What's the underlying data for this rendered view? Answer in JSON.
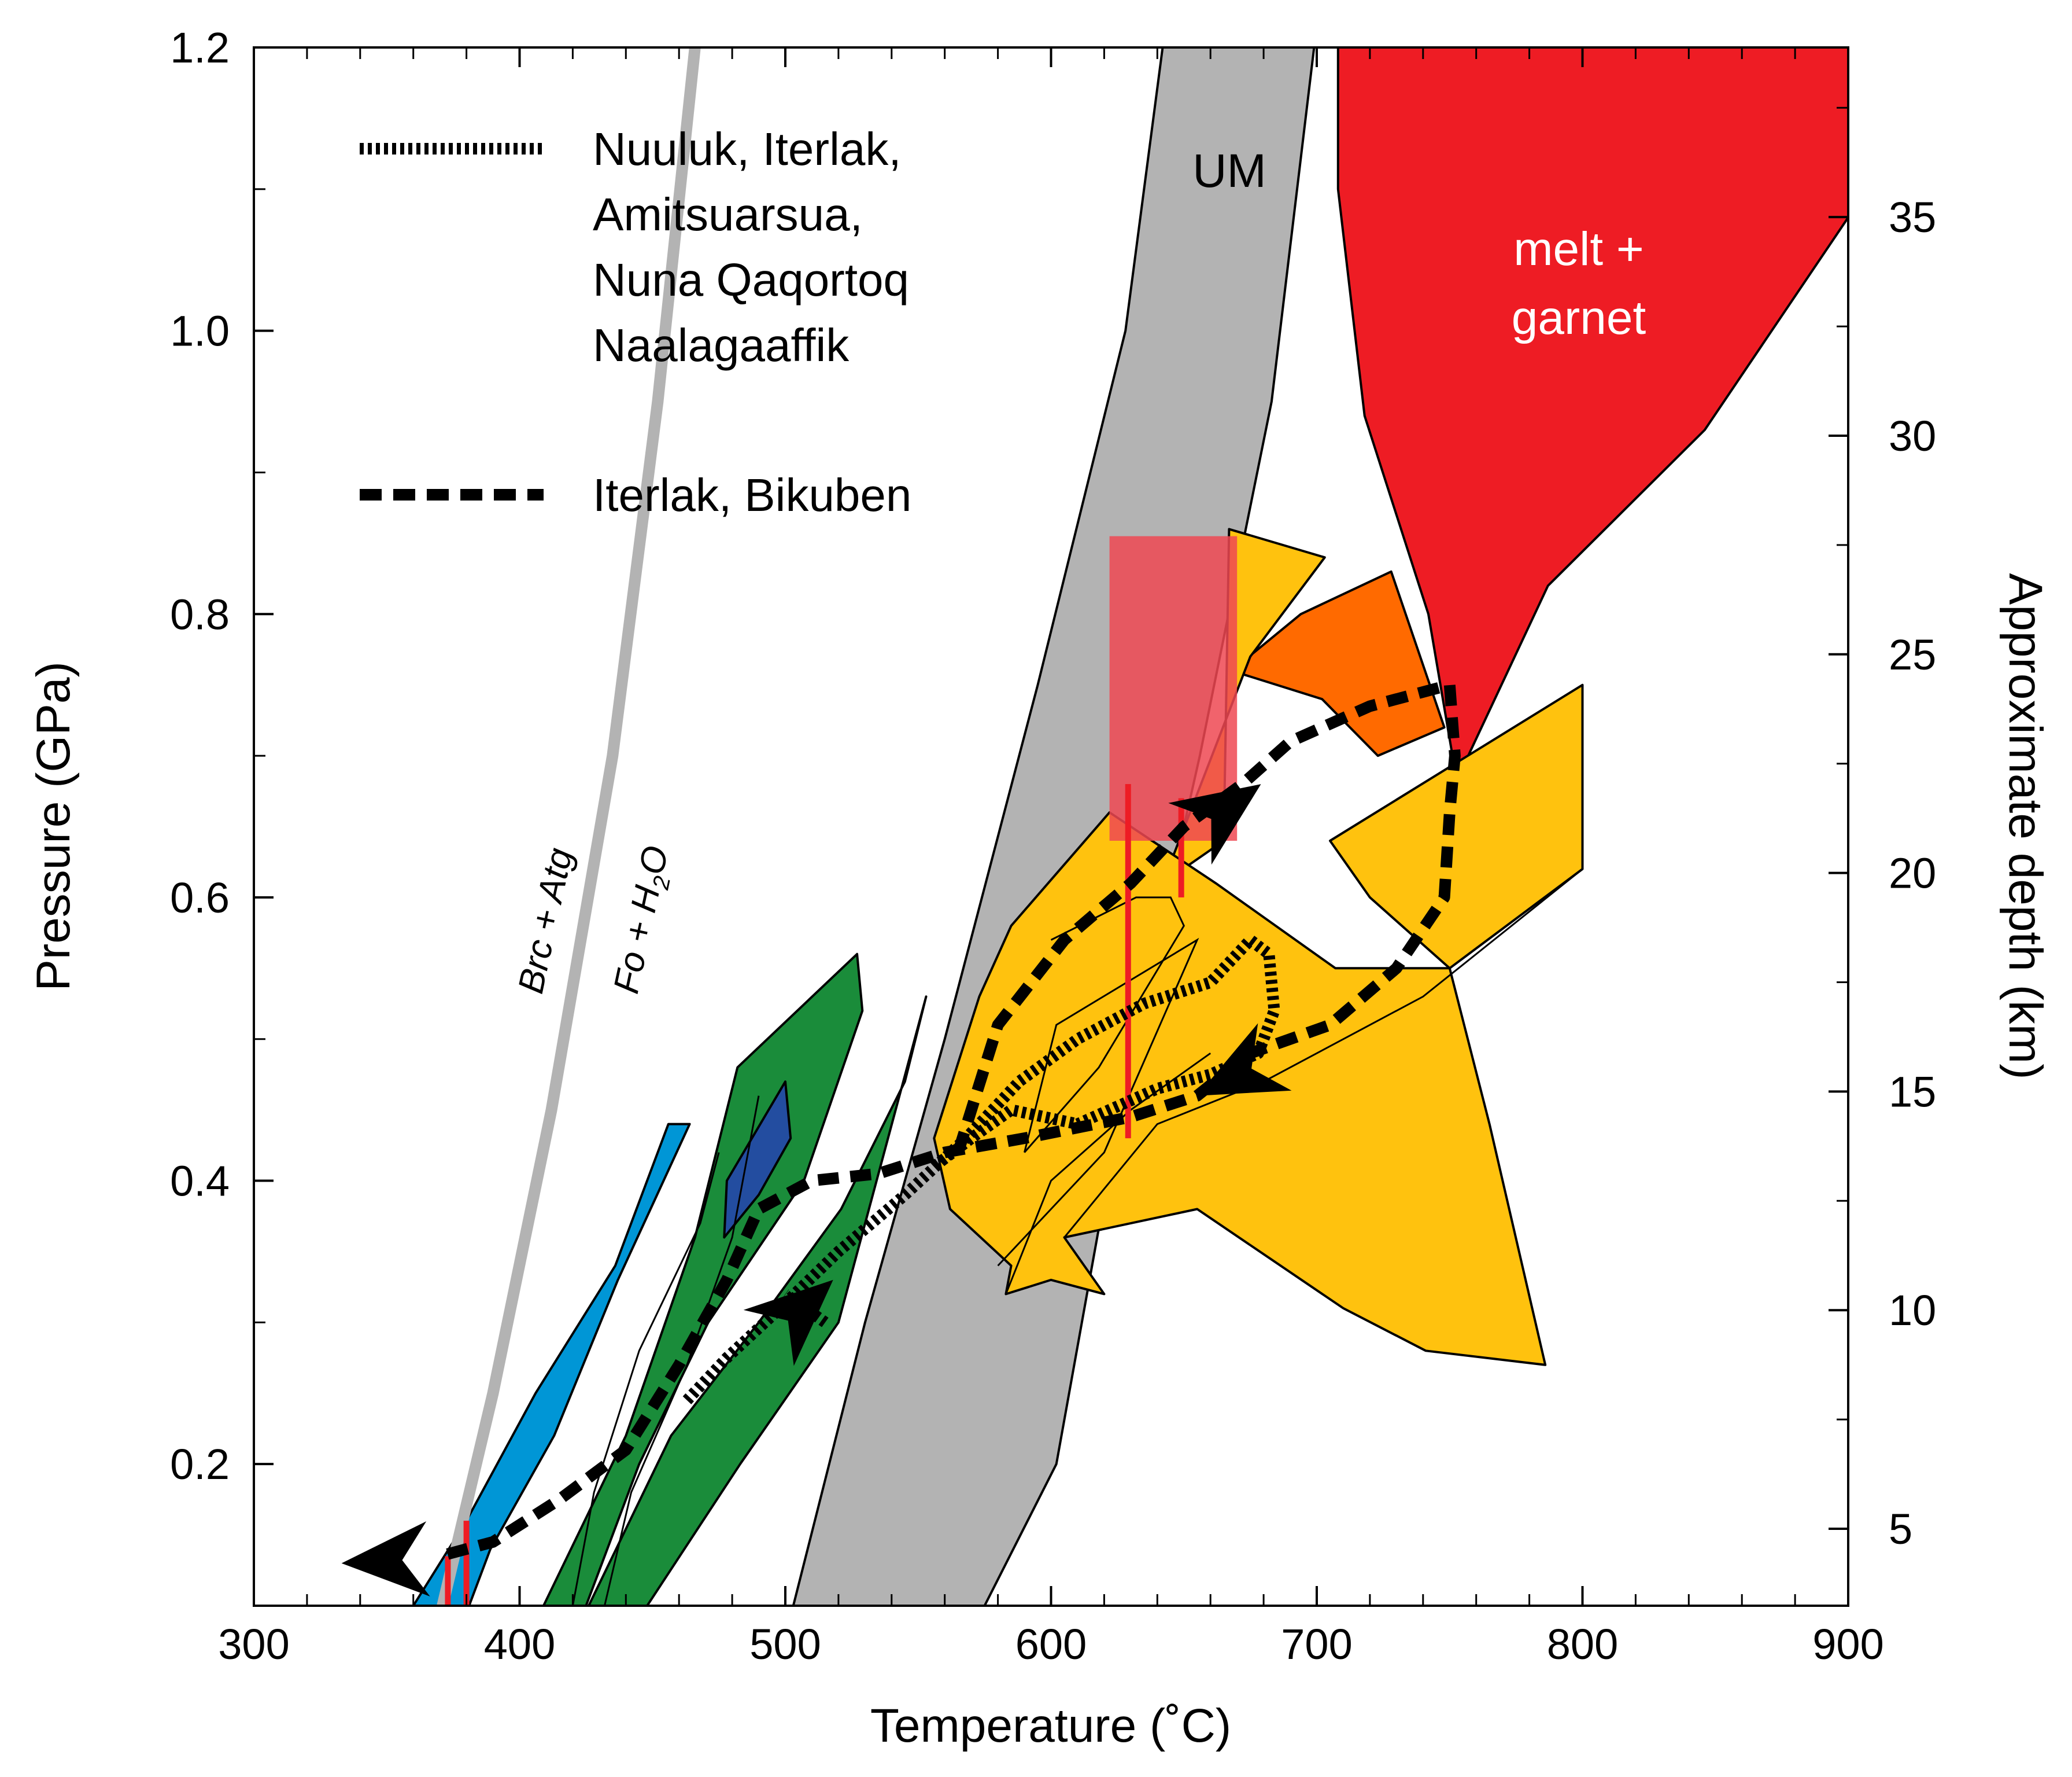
{
  "chart_data": {
    "type": "diagram",
    "title": "",
    "xlabel": "Temperature (˚C)",
    "ylabel": "Pressure (GPa)",
    "y2label": "Approximate depth (km)",
    "xlim": [
      300,
      900
    ],
    "ylim": [
      0.1,
      1.2
    ],
    "x_ticks": [
      300,
      400,
      500,
      600,
      700,
      800,
      900
    ],
    "x_tick_labels": [
      "300",
      "400",
      "500",
      "600",
      "700",
      "800",
      "900"
    ],
    "x_minor_step": 20,
    "y_ticks": [
      0.2,
      0.4,
      0.6,
      0.8,
      1.0,
      1.2
    ],
    "y_tick_labels": [
      "0.2",
      "0.4",
      "0.6",
      "0.8",
      "1.0",
      "1.2"
    ],
    "y_minor_step": 0.1,
    "depth_major_ticks": [
      5,
      10,
      15,
      20,
      25,
      30,
      35
    ],
    "depth_major_labels": [
      "5",
      "10",
      "15",
      "20",
      "25",
      "30",
      "35"
    ],
    "depth_minor_ticks": [
      7.5,
      12.5,
      17.5,
      22.5,
      27.5,
      32.5,
      37.5
    ],
    "depth_km_per_gpa": 32.4,
    "legend": [
      {
        "label_lines": [
          "Nuuluk, Iterlak,",
          "Amitsuarsua,",
          "Nuna Qaqortoq",
          "Naalagaaffik"
        ],
        "style": "dotted"
      },
      {
        "label_lines": [
          "Iterlak, Bikuben"
        ],
        "style": "dashed"
      }
    ],
    "reaction_curve": {
      "name": "brc-atg-reaction",
      "label_left": "Brc + Atg",
      "label_right_main": "Fo + H",
      "label_right_sub": "2",
      "label_right_end": "O",
      "color": "#b3b3b3",
      "points": [
        [
          371,
          0.1
        ],
        [
          390,
          0.25
        ],
        [
          412,
          0.45
        ],
        [
          435,
          0.7
        ],
        [
          452,
          0.95
        ],
        [
          466,
          1.2
        ]
      ]
    },
    "regions": [
      {
        "name": "um-band",
        "label": "UM",
        "fill": "#b3b3b3",
        "points": [
          [
            503,
            0.1
          ],
          [
            530,
            0.3
          ],
          [
            560,
            0.5
          ],
          [
            595,
            0.75
          ],
          [
            628,
            1.0
          ],
          [
            642,
            1.2
          ],
          [
            699,
            1.2
          ],
          [
            683,
            0.95
          ],
          [
            656,
            0.7
          ],
          [
            626,
            0.45
          ],
          [
            602,
            0.2
          ],
          [
            575,
            0.1
          ]
        ]
      },
      {
        "name": "melt-garnet-field",
        "label_lines": [
          "melt +",
          "garnet"
        ],
        "fill": "#ee1c24",
        "points": [
          [
            708,
            1.2
          ],
          [
            900,
            1.2
          ],
          [
            900,
            1.08
          ],
          [
            846,
            0.93
          ],
          [
            787,
            0.82
          ],
          [
            757,
            0.7
          ],
          [
            752,
            0.69
          ],
          [
            742,
            0.8
          ],
          [
            718,
            0.94
          ],
          [
            708,
            1.1
          ]
        ]
      },
      {
        "name": "orange-field",
        "fill": "#ff6a00",
        "points": [
          [
            668,
            0.76
          ],
          [
            694,
            0.8
          ],
          [
            728,
            0.83
          ],
          [
            748,
            0.72
          ],
          [
            723,
            0.7
          ],
          [
            702,
            0.74
          ]
        ]
      },
      {
        "name": "yellow-field-upper",
        "fill": "#ffc20e",
        "points": [
          [
            667,
            0.86
          ],
          [
            703,
            0.84
          ],
          [
            675,
            0.77
          ],
          [
            642,
            0.61
          ],
          [
            665,
            0.64
          ]
        ]
      },
      {
        "name": "yellow-field-right",
        "fill": "#ffc20e",
        "points": [
          [
            705,
            0.64
          ],
          [
            800,
            0.75
          ],
          [
            800,
            0.62
          ],
          [
            750,
            0.55
          ],
          [
            720,
            0.6
          ]
        ]
      },
      {
        "name": "yellow-field-main",
        "fill": "#ffc20e",
        "points": [
          [
            585,
            0.58
          ],
          [
            622,
            0.66
          ],
          [
            662,
            0.61
          ],
          [
            707,
            0.55
          ],
          [
            750,
            0.55
          ],
          [
            765,
            0.44
          ],
          [
            786,
            0.27
          ],
          [
            741,
            0.28
          ],
          [
            710,
            0.31
          ],
          [
            655,
            0.38
          ],
          [
            605,
            0.36
          ],
          [
            620,
            0.32
          ],
          [
            600,
            0.33
          ],
          [
            583,
            0.32
          ],
          [
            585,
            0.34
          ],
          [
            562,
            0.38
          ],
          [
            556,
            0.43
          ],
          [
            573,
            0.53
          ]
        ]
      },
      {
        "name": "green-field-1",
        "fill": "#1a8c3a",
        "points": [
          [
            482,
            0.48
          ],
          [
            527,
            0.56
          ],
          [
            529,
            0.52
          ],
          [
            507,
            0.4
          ],
          [
            471,
            0.3
          ],
          [
            445,
            0.2
          ],
          [
            425,
            0.1
          ],
          [
            409,
            0.1
          ],
          [
            440,
            0.22
          ],
          [
            466,
            0.36
          ]
        ]
      },
      {
        "name": "green-field-2",
        "fill": "#1a8c3a",
        "points": [
          [
            553,
            0.53
          ],
          [
            545,
            0.47
          ],
          [
            521,
            0.38
          ],
          [
            490,
            0.3
          ],
          [
            457,
            0.22
          ],
          [
            426,
            0.1
          ],
          [
            448,
            0.1
          ],
          [
            483,
            0.2
          ],
          [
            520,
            0.3
          ]
        ]
      },
      {
        "name": "blue-field-light",
        "fill": "#0096d6",
        "points": [
          [
            456,
            0.44
          ],
          [
            464,
            0.44
          ],
          [
            437,
            0.33
          ],
          [
            413,
            0.22
          ],
          [
            389,
            0.14
          ],
          [
            381,
            0.1
          ],
          [
            360,
            0.1
          ],
          [
            380,
            0.16
          ],
          [
            406,
            0.25
          ],
          [
            436,
            0.34
          ]
        ]
      },
      {
        "name": "blue-field-dark",
        "fill": "#234da0",
        "points": [
          [
            478,
            0.4
          ],
          [
            500,
            0.47
          ],
          [
            502,
            0.43
          ],
          [
            490,
            0.39
          ],
          [
            477,
            0.36
          ]
        ]
      },
      {
        "name": "pink-box",
        "fill": "rgba(239,72,82,0.85)",
        "stroke": "none",
        "points": [
          [
            622,
            0.855
          ],
          [
            670,
            0.855
          ],
          [
            670,
            0.64
          ],
          [
            622,
            0.64
          ]
        ]
      }
    ],
    "fine_lines": [
      {
        "name": "green-inner-line-1",
        "points": [
          [
            475,
            0.42
          ],
          [
            468,
            0.37
          ],
          [
            445,
            0.28
          ],
          [
            428,
            0.18
          ],
          [
            420,
            0.1
          ]
        ]
      },
      {
        "name": "green-inner-line-2",
        "points": [
          [
            490,
            0.46
          ],
          [
            480,
            0.36
          ],
          [
            463,
            0.27
          ],
          [
            442,
            0.18
          ],
          [
            432,
            0.1
          ]
        ]
      },
      {
        "name": "yellow-inner-line-1",
        "points": [
          [
            580,
            0.34
          ],
          [
            620,
            0.42
          ],
          [
            655,
            0.57
          ],
          [
            602,
            0.51
          ],
          [
            590,
            0.42
          ]
        ]
      },
      {
        "name": "yellow-inner-line-2",
        "points": [
          [
            600,
            0.57
          ],
          [
            632,
            0.6
          ],
          [
            645,
            0.6
          ],
          [
            650,
            0.58
          ],
          [
            618,
            0.48
          ],
          [
            590,
            0.42
          ]
        ]
      },
      {
        "name": "yellow-inner-line-3",
        "points": [
          [
            605,
            0.36
          ],
          [
            640,
            0.44
          ],
          [
            680,
            0.47
          ],
          [
            740,
            0.53
          ],
          [
            800,
            0.62
          ]
        ]
      },
      {
        "name": "yellow-inner-line-4",
        "points": [
          [
            660,
            0.49
          ],
          [
            630,
            0.45
          ],
          [
            600,
            0.4
          ],
          [
            583,
            0.32
          ]
        ]
      }
    ],
    "red_bars": [
      {
        "name": "red-bar-1",
        "x": 373,
        "y_low": 0.1,
        "y_high": 0.135
      },
      {
        "name": "red-bar-2",
        "x": 380,
        "y_low": 0.1,
        "y_high": 0.16
      },
      {
        "name": "red-bar-3",
        "x": 629,
        "y_low": 0.43,
        "y_high": 0.68
      },
      {
        "name": "red-bar-4",
        "x": 649,
        "y_low": 0.6,
        "y_high": 0.67
      }
    ],
    "paths": [
      {
        "name": "dotted-path",
        "style": "dotted",
        "points": [
          [
            463,
            0.245
          ],
          [
            478,
            0.275
          ],
          [
            498,
            0.31
          ],
          [
            520,
            0.35
          ],
          [
            545,
            0.39
          ],
          [
            568,
            0.43
          ],
          [
            588,
            0.47
          ],
          [
            610,
            0.5
          ],
          [
            635,
            0.525
          ],
          [
            660,
            0.54
          ],
          [
            675,
            0.57
          ],
          [
            682,
            0.56
          ],
          [
            684,
            0.52
          ],
          [
            678,
            0.49
          ],
          [
            660,
            0.475
          ],
          [
            640,
            0.465
          ],
          [
            610,
            0.44
          ],
          [
            585,
            0.45
          ],
          [
            570,
            0.43
          ],
          [
            556,
            0.41
          ]
        ]
      },
      {
        "name": "dashed-path-1",
        "style": "dashed",
        "points": [
          [
            565,
            0.42
          ],
          [
            580,
            0.51
          ],
          [
            605,
            0.57
          ],
          [
            630,
            0.61
          ],
          [
            650,
            0.65
          ],
          [
            672,
            0.68
          ],
          [
            690,
            0.71
          ],
          [
            720,
            0.735
          ],
          [
            750,
            0.75
          ],
          [
            752,
            0.7
          ],
          [
            750,
            0.66
          ],
          [
            748,
            0.6
          ],
          [
            730,
            0.55
          ],
          [
            705,
            0.51
          ],
          [
            675,
            0.49
          ],
          [
            655,
            0.46
          ],
          [
            630,
            0.445
          ],
          [
            590,
            0.43
          ],
          [
            560,
            0.42
          ],
          [
            535,
            0.405
          ],
          [
            510,
            0.4
          ],
          [
            490,
            0.38
          ],
          [
            478,
            0.33
          ],
          [
            460,
            0.27
          ],
          [
            440,
            0.21
          ],
          [
            415,
            0.175
          ],
          [
            390,
            0.145
          ],
          [
            370,
            0.135
          ]
        ]
      },
      {
        "name": "dotted-arrow-tail",
        "style": "dotted",
        "points": [
          [
            515,
            0.3
          ],
          [
            500,
            0.32
          ]
        ]
      }
    ],
    "arrows": [
      {
        "name": "arrowhead-lower-left",
        "tip": [
          333,
          0.13
        ],
        "dir": [
          -1,
          -0.05
        ]
      },
      {
        "name": "arrowhead-dotted-up",
        "tip": [
          518,
          0.33
        ],
        "dir": [
          1,
          0.9
        ]
      },
      {
        "name": "arrowhead-upper",
        "tip": [
          679,
          0.68
        ],
        "dir": [
          1,
          0.7
        ]
      },
      {
        "name": "arrowhead-right-lower",
        "tip": [
          655,
          0.46
        ],
        "dir": [
          -1,
          -0.5
        ]
      }
    ]
  }
}
